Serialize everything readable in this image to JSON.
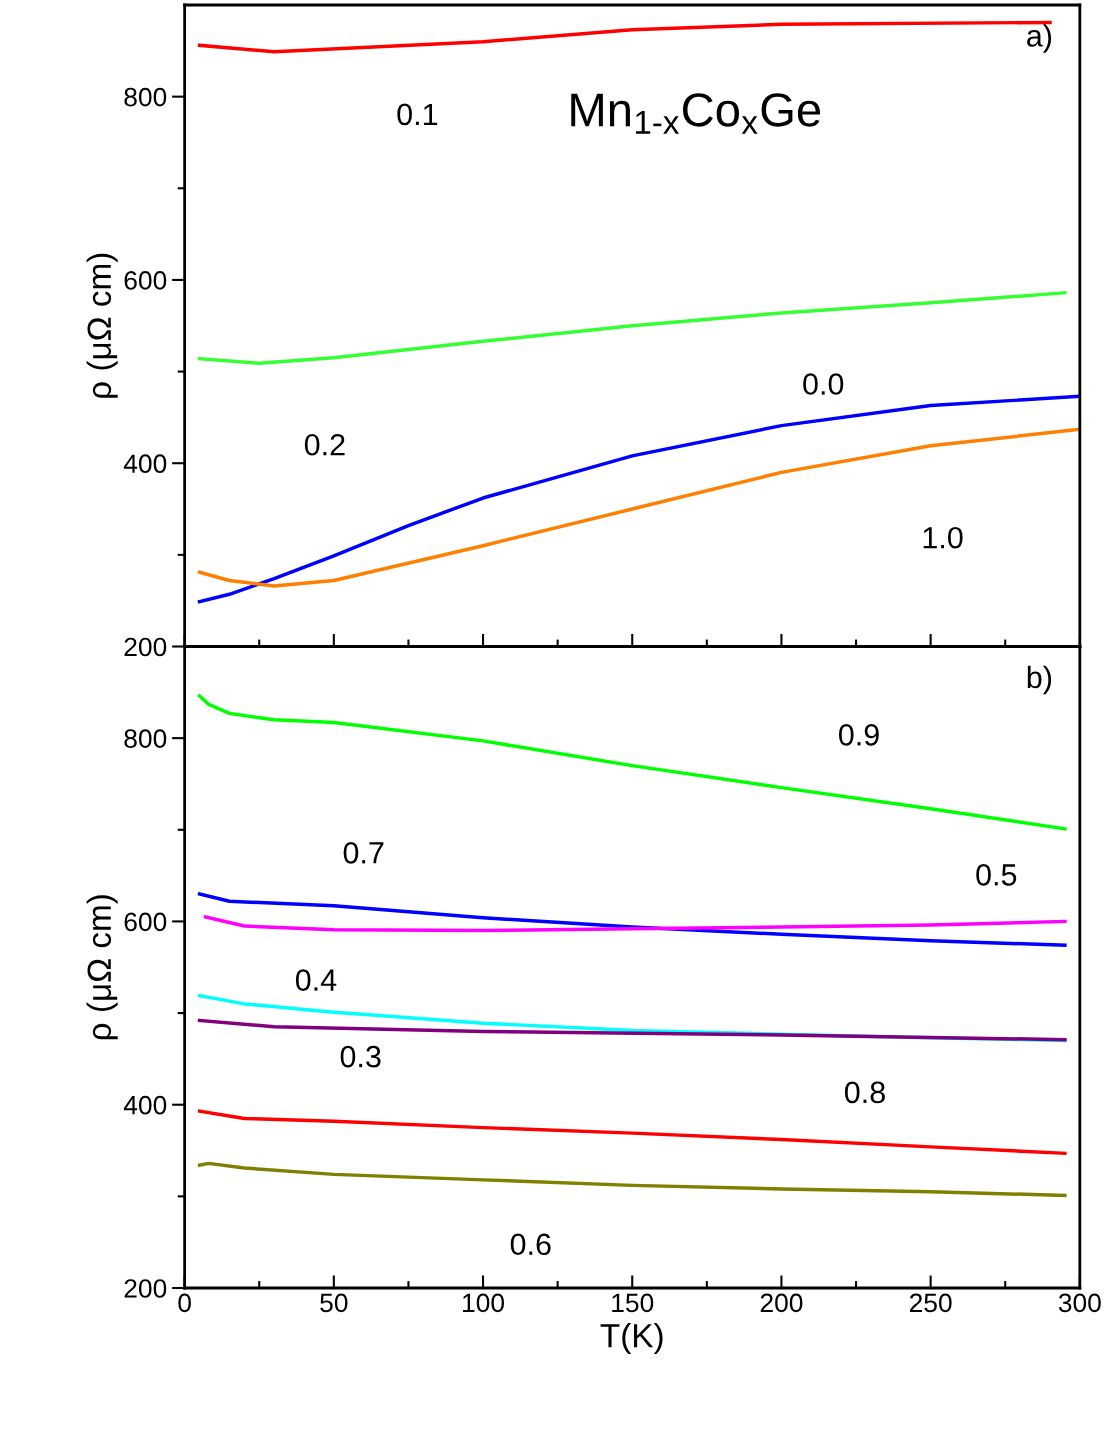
{
  "chart_data": [
    {
      "type": "line",
      "ylabel": "ρ (μΩ cm)",
      "xlim": [
        0,
        300
      ],
      "ylim": [
        200,
        900
      ],
      "xticks": [
        0,
        50,
        100,
        150,
        200,
        250,
        300
      ],
      "yticks": [
        200,
        400,
        600,
        800
      ],
      "tick_labels": "y",
      "grid": false,
      "legend": false,
      "series": [
        {
          "name": "0.1",
          "color": "#ff0000",
          "x": [
            5,
            30,
            100,
            150,
            200,
            290
          ],
          "values": [
            856,
            849,
            860,
            873,
            879,
            881
          ]
        },
        {
          "name": "0.2",
          "color": "#33ff33",
          "x": [
            5,
            25,
            50,
            100,
            150,
            200,
            250,
            295
          ],
          "values": [
            514,
            509,
            515,
            533,
            550,
            564,
            575,
            586
          ]
        },
        {
          "name": "0.0",
          "color": "#0000ff",
          "x": [
            5,
            15,
            30,
            50,
            75,
            100,
            150,
            200,
            250,
            300
          ],
          "values": [
            249,
            257,
            274,
            299,
            332,
            362,
            408,
            441,
            463,
            473
          ]
        },
        {
          "name": "1.0",
          "color": "#ff8000",
          "x": [
            5,
            15,
            30,
            50,
            100,
            150,
            200,
            250,
            300
          ],
          "values": [
            281,
            272,
            266,
            272,
            310,
            350,
            390,
            419,
            437
          ]
        }
      ],
      "annotations": [
        "a)",
        "Mn$_{1-x}$Co$_{x}$Ge"
      ]
    },
    {
      "type": "line",
      "xlabel": "T(K)",
      "ylabel": "ρ (μΩ cm)",
      "xlim": [
        0,
        300
      ],
      "ylim": [
        200,
        900
      ],
      "xticks": [
        0,
        50,
        100,
        150,
        200,
        250,
        300
      ],
      "yticks": [
        200,
        400,
        600,
        800
      ],
      "grid": false,
      "legend": false,
      "series": [
        {
          "name": "0.9",
          "color": "#00ff00",
          "x": [
            5,
            8,
            15,
            30,
            50,
            100,
            150,
            200,
            250,
            295
          ],
          "values": [
            846,
            837,
            827,
            820,
            817,
            797,
            770,
            746,
            723,
            701
          ]
        },
        {
          "name": "0.7",
          "color": "#0000ff",
          "x": [
            5,
            15,
            50,
            100,
            150,
            200,
            250,
            295
          ],
          "values": [
            630,
            622,
            617,
            604,
            594,
            586,
            579,
            574
          ]
        },
        {
          "name": "0.5",
          "color": "#ff00ff",
          "x": [
            7,
            20,
            50,
            100,
            150,
            200,
            250,
            295
          ],
          "values": [
            605,
            595,
            591,
            590,
            592,
            594,
            596,
            600
          ]
        },
        {
          "name": "0.4",
          "color": "#00ffff",
          "x": [
            5,
            20,
            50,
            100,
            150,
            200,
            250,
            295
          ],
          "values": [
            519,
            510,
            501,
            489,
            481,
            477,
            473,
            470
          ]
        },
        {
          "name": "0.3",
          "color": "#800080",
          "x": [
            5,
            30,
            100,
            200,
            295
          ],
          "values": [
            492,
            485,
            480,
            476,
            471
          ]
        },
        {
          "name": "0.8",
          "color": "#ff0000",
          "x": [
            5,
            20,
            50,
            100,
            150,
            200,
            250,
            295
          ],
          "values": [
            393,
            385,
            382,
            375,
            369,
            362,
            354,
            347
          ]
        },
        {
          "name": "0.6",
          "color": "#808000",
          "x": [
            5,
            8,
            20,
            50,
            100,
            150,
            200,
            250,
            295
          ],
          "values": [
            334,
            336,
            331,
            324,
            318,
            312,
            308,
            305,
            301
          ]
        }
      ],
      "annotations": [
        "b)"
      ]
    }
  ]
}
